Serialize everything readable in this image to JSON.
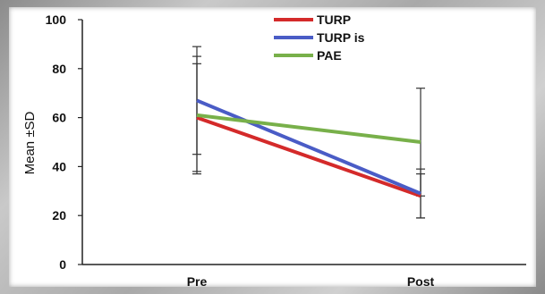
{
  "chart_data": {
    "type": "line",
    "title": "",
    "xlabel": "",
    "ylabel": "Mean ±SD",
    "categories": [
      "Pre",
      "Post"
    ],
    "ylim": [
      0,
      100
    ],
    "yticks": [
      0,
      20,
      40,
      60,
      80,
      100
    ],
    "grid": false,
    "legend_position": "top-center",
    "series": [
      {
        "name": "TURP",
        "color": "#d42a2a",
        "values": [
          60,
          28
        ],
        "sd": [
          22,
          9
        ]
      },
      {
        "name": "TURP is",
        "color": "#4a5cc6",
        "values": [
          67,
          29
        ],
        "sd": [
          22,
          10
        ]
      },
      {
        "name": "PAE",
        "color": "#78b04a",
        "values": [
          61,
          50
        ],
        "sd": [
          24,
          22
        ]
      }
    ]
  }
}
